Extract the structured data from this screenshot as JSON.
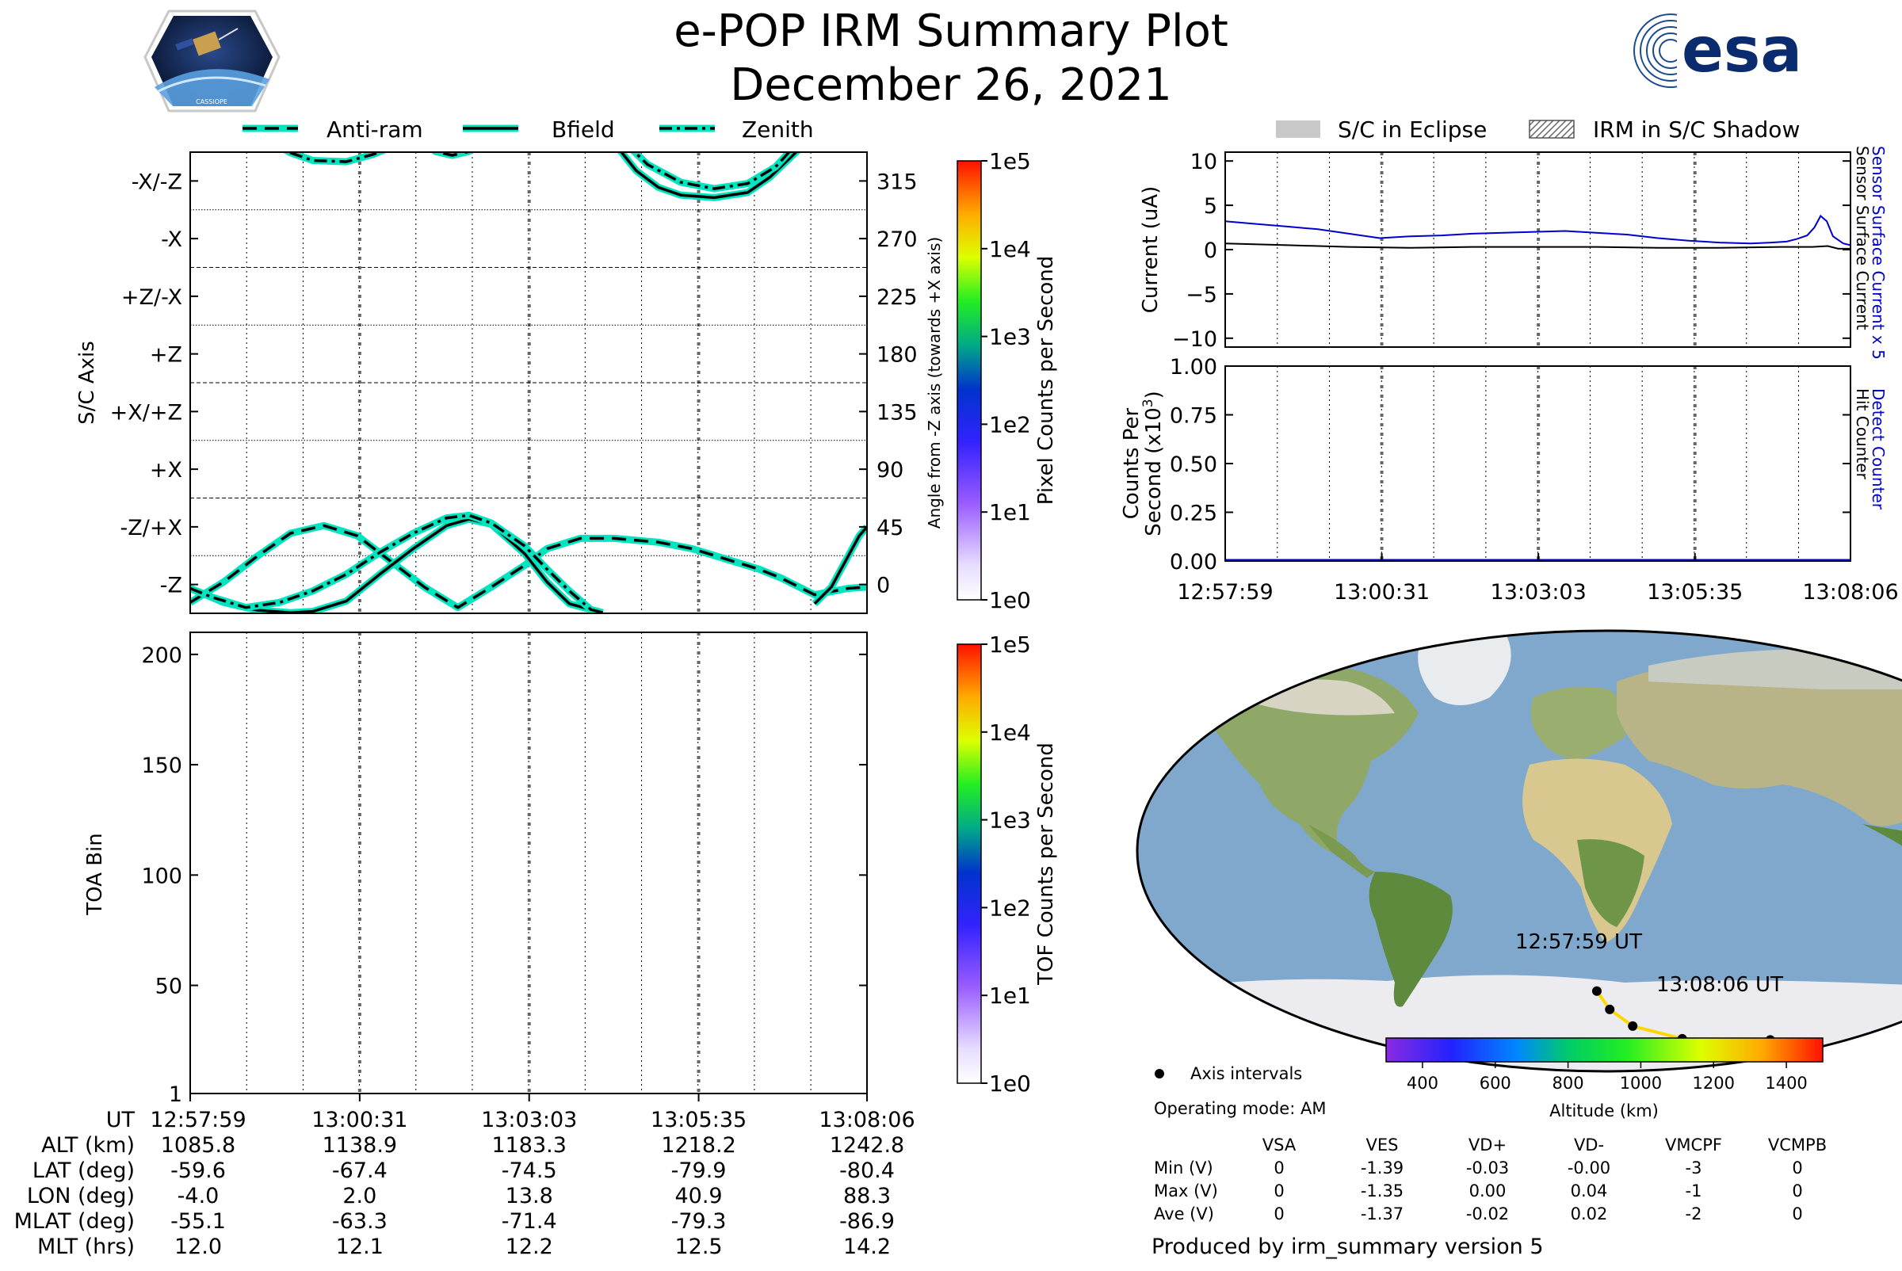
{
  "header": {
    "title": "e-POP IRM Summary Plot",
    "date": "December 26, 2021",
    "left_logo": {
      "name": "cassiope-mission-badge",
      "text": "CASSIOPE"
    },
    "right_logo": {
      "name": "esa-logo",
      "text": "esa"
    }
  },
  "left_legend": [
    "Anti-ram",
    "Bfield",
    "Zenith"
  ],
  "right_legend": [
    "S/C in Eclipse",
    "IRM in S/C Shadow"
  ],
  "chart_data": [
    {
      "id": "sc-axis",
      "type": "line",
      "ylabel": "S/C Axis",
      "y2label": "Angle from -Z axis (towards +X axis)",
      "ylim": [
        -22.5,
        337.5
      ],
      "ytick_labels": [
        "-Z",
        "-Z/+X",
        "+X",
        "+X/+Z",
        "+Z",
        "+Z/-X",
        "-X",
        "-X/-Z"
      ],
      "ytick_values": [
        0,
        45,
        90,
        135,
        180,
        225,
        270,
        315
      ],
      "y2tick_labels": [
        "0",
        "45",
        "90",
        "135",
        "180",
        "225",
        "270",
        "315"
      ],
      "x_tick_labels": [
        "12:57:59",
        "13:00:31",
        "13:03:03",
        "13:05:35",
        "13:08:06"
      ],
      "xlim_seconds": [
        0,
        607
      ],
      "series": [
        {
          "name": "Anti-ram",
          "style": "dashed",
          "points": [
            [
              0,
              -14
            ],
            [
              30,
              2
            ],
            [
              60,
              22
            ],
            [
              90,
              40
            ],
            [
              120,
              46
            ],
            [
              150,
              38
            ],
            [
              180,
              18
            ],
            [
              210,
              -2
            ],
            [
              240,
              -18
            ],
            [
              270,
              -2
            ],
            [
              300,
              15
            ],
            [
              320,
              28
            ],
            [
              350,
              36
            ],
            [
              380,
              36
            ],
            [
              420,
              33
            ],
            [
              450,
              28
            ],
            [
              480,
              20
            ],
            [
              510,
              12
            ],
            [
              530,
              5
            ],
            [
              560,
              -8
            ],
            [
              590,
              -3
            ],
            [
              607,
              -2
            ]
          ]
        },
        {
          "name": "Bfield",
          "style": "solid",
          "points": [
            [
              0,
              -3
            ],
            [
              30,
              -14
            ],
            [
              60,
              -20
            ],
            [
              90,
              -22
            ],
            [
              110,
              -21
            ],
            [
              140,
              -13
            ],
            [
              170,
              8
            ],
            [
              200,
              28
            ],
            [
              230,
              46
            ],
            [
              250,
              51
            ],
            [
              270,
              47
            ],
            [
              300,
              24
            ],
            [
              320,
              2
            ],
            [
              340,
              -15
            ],
            [
              370,
              -22
            ]
          ]
        },
        {
          "name": "Bfield",
          "style": "solid",
          "points": [
            [
              380,
              345
            ],
            [
              400,
              323
            ],
            [
              420,
              310
            ],
            [
              440,
              304
            ],
            [
              470,
              302
            ],
            [
              500,
              306
            ],
            [
              520,
              318
            ],
            [
              550,
              343
            ]
          ]
        },
        {
          "name": "Bfield",
          "style": "solid",
          "points": [
            [
              560,
              -15
            ],
            [
              575,
              -2
            ],
            [
              590,
              22
            ],
            [
              600,
              38
            ],
            [
              607,
              45
            ]
          ]
        },
        {
          "name": "Zenith",
          "style": "dashdot",
          "points": [
            [
              0,
              -3
            ],
            [
              20,
              -10
            ],
            [
              50,
              -18
            ],
            [
              80,
              -14
            ],
            [
              110,
              -5
            ],
            [
              140,
              8
            ],
            [
              170,
              25
            ],
            [
              200,
              40
            ],
            [
              230,
              52
            ],
            [
              250,
              54
            ],
            [
              270,
              48
            ],
            [
              300,
              30
            ],
            [
              320,
              12
            ],
            [
              340,
              -5
            ],
            [
              360,
              -20
            ]
          ]
        },
        {
          "name": "Zenith",
          "style": "dashdot",
          "points": [
            [
              70,
              347
            ],
            [
              90,
              337
            ],
            [
              110,
              331
            ],
            [
              140,
              330
            ],
            [
              165,
              336
            ],
            [
              190,
              345
            ]
          ]
        },
        {
          "name": "Zenith",
          "style": "dashdot",
          "points": [
            [
              390,
              345
            ],
            [
              410,
              328
            ],
            [
              440,
              314
            ],
            [
              470,
              309
            ],
            [
              500,
              313
            ],
            [
              525,
              326
            ],
            [
              545,
              345
            ]
          ]
        },
        {
          "name": "Anti-ram",
          "style": "dashed",
          "points": [
            [
              210,
              345
            ],
            [
              220,
              338
            ],
            [
              235,
              335
            ],
            [
              250,
              338
            ],
            [
              262,
              345
            ]
          ]
        }
      ]
    },
    {
      "id": "toa",
      "type": "heatmap",
      "ylabel": "TOA Bin",
      "ylim": [
        1,
        210
      ],
      "ytick_values": [
        1,
        50,
        100,
        150,
        200
      ],
      "ytick_labels": [
        "1",
        "50",
        "100",
        "150",
        "200"
      ],
      "xlim_seconds": [
        0,
        607
      ],
      "values": []
    },
    {
      "id": "current",
      "type": "line",
      "ylabel": "Current (uA)",
      "y2label_blue": "Sensor Surface Current x 5",
      "y2label_black": "Sensor Surface Current",
      "ylim": [
        -11,
        11
      ],
      "ytick_values": [
        10,
        5,
        0,
        -5,
        -10
      ],
      "ytick_labels": [
        "10",
        "5",
        "0",
        "−5",
        "−10"
      ],
      "xlim_seconds": [
        0,
        607
      ],
      "series": [
        {
          "name": "Sensor Surface Current x 5",
          "color": "#0000cc",
          "points": [
            [
              0,
              3.2
            ],
            [
              30,
              2.9
            ],
            [
              60,
              2.6
            ],
            [
              90,
              2.3
            ],
            [
              120,
              1.8
            ],
            [
              150,
              1.3
            ],
            [
              180,
              1.5
            ],
            [
              210,
              1.6
            ],
            [
              240,
              1.8
            ],
            [
              270,
              1.9
            ],
            [
              300,
              2.0
            ],
            [
              330,
              2.1
            ],
            [
              360,
              1.9
            ],
            [
              390,
              1.7
            ],
            [
              420,
              1.3
            ],
            [
              450,
              1.0
            ],
            [
              480,
              0.8
            ],
            [
              510,
              0.7
            ],
            [
              530,
              0.8
            ],
            [
              545,
              0.9
            ],
            [
              555,
              1.2
            ],
            [
              565,
              1.6
            ],
            [
              572,
              2.5
            ],
            [
              578,
              3.8
            ],
            [
              584,
              3.2
            ],
            [
              590,
              1.5
            ],
            [
              600,
              0.7
            ],
            [
              607,
              0.5
            ]
          ]
        },
        {
          "name": "Sensor Surface Current",
          "color": "#000000",
          "points": [
            [
              0,
              0.7
            ],
            [
              60,
              0.5
            ],
            [
              120,
              0.3
            ],
            [
              180,
              0.2
            ],
            [
              240,
              0.3
            ],
            [
              300,
              0.3
            ],
            [
              360,
              0.3
            ],
            [
              420,
              0.2
            ],
            [
              480,
              0.2
            ],
            [
              540,
              0.3
            ],
            [
              570,
              0.3
            ],
            [
              585,
              0.4
            ],
            [
              595,
              0.1
            ],
            [
              607,
              0.1
            ]
          ]
        }
      ]
    },
    {
      "id": "counts",
      "type": "line",
      "ylabel_line1": "Counts Per",
      "ylabel_line2": "Second (x10",
      "ylabel_exp": "3",
      "ylabel_close": ")",
      "y2label_blue": "Detect Counter",
      "y2label_black": "Hit Counter",
      "ylim": [
        0,
        1
      ],
      "ytick_values": [
        1.0,
        0.75,
        0.5,
        0.25,
        0.0
      ],
      "ytick_labels": [
        "1.00",
        "0.75",
        "0.50",
        "0.25",
        "0.00"
      ],
      "x_tick_labels": [
        "12:57:59",
        "13:00:31",
        "13:03:03",
        "13:05:35",
        "13:08:06"
      ],
      "xlim_seconds": [
        0,
        607
      ],
      "series": [
        {
          "name": "Detect Counter",
          "color": "#0000cc",
          "points": [
            [
              0,
              0
            ],
            [
              607,
              0
            ]
          ]
        }
      ]
    }
  ],
  "colorbars": {
    "pixel": {
      "label": "Pixel Counts per Second",
      "ticks": [
        "1e5",
        "1e4",
        "1e3",
        "1e2",
        "1e1",
        "1e0"
      ]
    },
    "tof": {
      "label": "TOF Counts per Second",
      "ticks": [
        "1e5",
        "1e4",
        "1e3",
        "1e2",
        "1e1",
        "1e0"
      ]
    },
    "altitude": {
      "label": "Altitude (km)",
      "ticks": [
        "400",
        "600",
        "800",
        "1000",
        "1200",
        "1400"
      ],
      "range_km": [
        300,
        1500
      ]
    }
  },
  "map": {
    "start_label": "12:57:59 UT",
    "end_label": "13:08:06 UT",
    "legend_label": "Axis intervals",
    "track_lonlat": [
      [
        -4.0,
        -59.6
      ],
      [
        2.0,
        -67.4
      ],
      [
        13.8,
        -74.5
      ],
      [
        40.9,
        -79.9
      ],
      [
        88.3,
        -80.4
      ]
    ]
  },
  "info": {
    "operating_mode": "Operating mode: AM",
    "voltage_table": {
      "columns": [
        "",
        "VSA",
        "VES",
        "VD+",
        "VD-",
        "VMCPF",
        "VCMPB"
      ],
      "rows": [
        [
          "Min (V)",
          "0",
          "-1.39",
          "-0.03",
          "-0.00",
          "-3",
          "0"
        ],
        [
          "Max (V)",
          "0",
          "-1.35",
          "0.00",
          "0.04",
          "-1",
          "0"
        ],
        [
          "Ave (V)",
          "0",
          "-1.37",
          "-0.02",
          "0.02",
          "-2",
          "0"
        ]
      ]
    },
    "produced_by": "Produced by irm_summary version 5"
  },
  "ephemeris": {
    "labels": [
      "UT",
      "ALT (km)",
      "LAT (deg)",
      "LON (deg)",
      "MLAT (deg)",
      "MLT (hrs)"
    ],
    "columns": [
      [
        "12:57:59",
        "1085.8",
        "-59.6",
        "-4.0",
        "-55.1",
        "12.0"
      ],
      [
        "13:00:31",
        "1138.9",
        "-67.4",
        "2.0",
        "-63.3",
        "12.1"
      ],
      [
        "13:03:03",
        "1183.3",
        "-74.5",
        "13.8",
        "-71.4",
        "12.2"
      ],
      [
        "13:05:35",
        "1218.2",
        "-79.9",
        "40.9",
        "-79.3",
        "12.5"
      ],
      [
        "13:08:06",
        "1242.8",
        "-80.4",
        "88.3",
        "-86.9",
        "14.2"
      ]
    ]
  }
}
